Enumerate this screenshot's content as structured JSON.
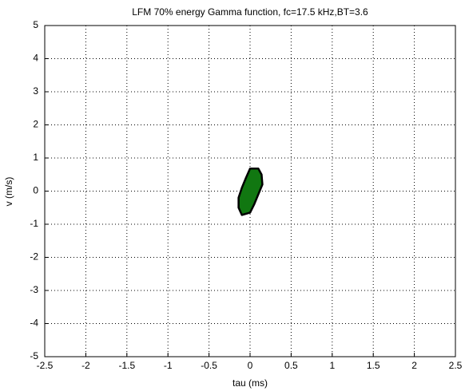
{
  "chart_data": {
    "type": "contour",
    "title": "LFM 70% energy Gamma function, fc=17.5 kHz,BT=3.6",
    "xlabel": "tau (ms)",
    "ylabel": "v (m/s)",
    "x": [
      0.0,
      0.1,
      0.14,
      0.15,
      0.1,
      0.05,
      0.0,
      -0.1,
      -0.14,
      -0.14,
      -0.1,
      -0.05
    ],
    "y": [
      0.68,
      0.68,
      0.5,
      0.2,
      -0.1,
      -0.4,
      -0.65,
      -0.72,
      -0.5,
      -0.2,
      0.1,
      0.4
    ],
    "color": "#117711",
    "edge_color": "#000000",
    "xlim": [
      -2.5,
      2.5
    ],
    "xticks": [
      -2.5,
      -2,
      -1.5,
      -1,
      -0.5,
      0,
      0.5,
      1,
      1.5,
      2,
      2.5
    ],
    "ylim": [
      -5,
      5
    ],
    "yticks": [
      -5,
      -4,
      -3,
      -2,
      -1,
      0,
      1,
      2,
      3,
      4,
      5
    ],
    "grid": true
  }
}
